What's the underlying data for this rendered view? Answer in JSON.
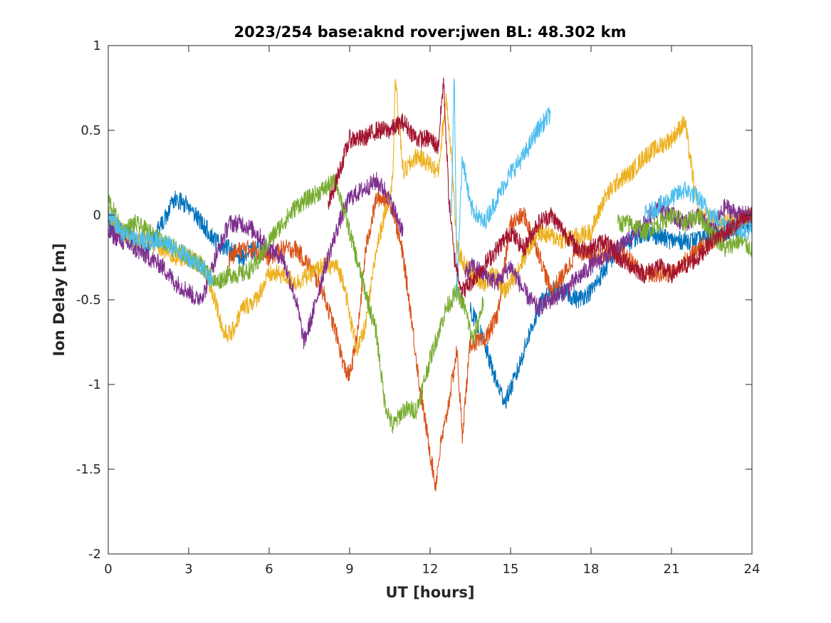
{
  "chart_data": {
    "type": "line",
    "title": "2023/254 base:aknd rover:jwen BL: 48.302 km",
    "xlabel": "UT [hours]",
    "ylabel": "Ion Delay [m]",
    "xlim": [
      0,
      24
    ],
    "ylim": [
      -2,
      1
    ],
    "xticks": [
      0,
      3,
      6,
      9,
      12,
      15,
      18,
      21,
      24
    ],
    "yticks": [
      -2,
      -1.5,
      -1,
      -0.5,
      0,
      0.5,
      1
    ],
    "xtick_labels": [
      "0",
      "3",
      "6",
      "9",
      "12",
      "15",
      "18",
      "21",
      "24"
    ],
    "ytick_labels": [
      "-2",
      "-1.5",
      "-1",
      "-0.5",
      "0",
      "0.5",
      "1"
    ],
    "grid": false,
    "legend": "none",
    "series": [
      {
        "color": "#0072BD",
        "x": [
          0,
          0.5,
          1.0,
          1.5,
          2.0,
          2.5,
          3.0,
          3.5,
          4.0,
          4.5,
          5.0,
          5.5,
          6.0,
          13.5,
          14.0,
          14.5,
          14.8,
          15.2,
          15.7,
          16.2,
          16.6,
          17.0,
          17.5,
          18.0,
          19.0,
          20.0,
          21.0,
          22.0,
          23.0,
          24.0
        ],
        "y": [
          -0.05,
          -0.1,
          -0.15,
          -0.2,
          -0.05,
          0.1,
          0.05,
          -0.05,
          -0.15,
          -0.2,
          -0.25,
          -0.2,
          -0.2,
          -0.55,
          -0.75,
          -1.0,
          -1.1,
          -0.95,
          -0.7,
          -0.5,
          -0.45,
          -0.45,
          -0.5,
          -0.45,
          -0.2,
          -0.1,
          -0.15,
          -0.15,
          -0.1,
          -0.05
        ]
      },
      {
        "color": "#D95319",
        "x": [
          4.5,
          5.0,
          5.5,
          6.0,
          6.5,
          7.0,
          7.5,
          8.0,
          8.5,
          8.8,
          9.0,
          9.3,
          9.6,
          10.0,
          10.3,
          10.6,
          11.0,
          11.3,
          11.6,
          12.0,
          12.2,
          12.4,
          12.6,
          12.8,
          13.0,
          13.2,
          13.5,
          14.0,
          14.5,
          15.0,
          15.5,
          16.0,
          16.5,
          17.0,
          17.5,
          18.0,
          19.0,
          20.0,
          21.0,
          22.0,
          23.0,
          24.0
        ],
        "y": [
          -0.25,
          -0.2,
          -0.2,
          -0.25,
          -0.2,
          -0.2,
          -0.3,
          -0.45,
          -0.7,
          -0.9,
          -0.95,
          -0.7,
          -0.2,
          0.1,
          0.1,
          0.05,
          -0.25,
          -0.6,
          -1.0,
          -1.4,
          -1.6,
          -1.35,
          -1.2,
          -1.0,
          -0.8,
          -1.3,
          -0.75,
          -0.75,
          -0.6,
          -0.05,
          0.0,
          -0.2,
          -0.45,
          -0.35,
          -0.2,
          -0.25,
          -0.2,
          -0.35,
          -0.35,
          -0.2,
          -0.1,
          0.0
        ]
      },
      {
        "color": "#EDB120",
        "x": [
          0,
          0.5,
          1.0,
          1.5,
          2.0,
          2.5,
          3.0,
          3.5,
          4.0,
          4.3,
          4.6,
          5.0,
          5.5,
          6.0,
          6.5,
          7.0,
          7.5,
          8.0,
          8.5,
          8.8,
          9.0,
          9.3,
          9.6,
          10.0,
          10.3,
          10.6,
          10.7,
          11.0,
          11.5,
          12.0,
          12.3,
          12.6,
          12.8,
          13.0,
          13.3,
          13.6,
          14.0,
          14.4,
          14.8,
          15.0,
          15.5,
          16.0,
          17.0,
          18.0,
          18.5,
          19.0,
          19.5,
          20.0,
          20.5,
          21.0,
          21.5,
          22.0,
          23.0,
          24.0
        ],
        "y": [
          0.0,
          -0.1,
          -0.15,
          -0.15,
          -0.2,
          -0.25,
          -0.25,
          -0.3,
          -0.5,
          -0.7,
          -0.7,
          -0.55,
          -0.5,
          -0.35,
          -0.35,
          -0.4,
          -0.35,
          -0.3,
          -0.3,
          -0.4,
          -0.6,
          -0.8,
          -0.65,
          -0.2,
          0.0,
          0.2,
          0.8,
          0.25,
          0.35,
          0.3,
          0.25,
          0.7,
          0.35,
          -0.2,
          -0.3,
          -0.35,
          -0.4,
          -0.35,
          -0.45,
          -0.4,
          -0.25,
          -0.1,
          -0.15,
          -0.1,
          0.1,
          0.2,
          0.25,
          0.35,
          0.4,
          0.45,
          0.55,
          0.0,
          -0.05,
          0.0
        ]
      },
      {
        "color": "#7E2F8E",
        "x": [
          0,
          0.5,
          1.0,
          1.5,
          2.0,
          2.5,
          3.0,
          3.3,
          3.6,
          4.0,
          4.5,
          5.0,
          5.5,
          6.0,
          6.5,
          7.0,
          7.3,
          7.6,
          8.0,
          8.3,
          8.6,
          9.0,
          9.5,
          10.0,
          10.3,
          10.6,
          11.0,
          13.3,
          13.6,
          14.0,
          14.5,
          15.0,
          15.5,
          16.0,
          16.5,
          17.0,
          18.0,
          19.0,
          20.0,
          20.5,
          21.0,
          21.5,
          22.0,
          22.5,
          23.0,
          23.5,
          24.0
        ],
        "y": [
          -0.1,
          -0.15,
          -0.2,
          -0.25,
          -0.3,
          -0.4,
          -0.45,
          -0.5,
          -0.45,
          -0.25,
          -0.05,
          -0.05,
          -0.1,
          -0.2,
          -0.25,
          -0.5,
          -0.75,
          -0.6,
          -0.35,
          -0.2,
          -0.05,
          0.1,
          0.15,
          0.2,
          0.15,
          0.05,
          -0.1,
          -0.35,
          -0.3,
          -0.35,
          -0.4,
          -0.3,
          -0.45,
          -0.55,
          -0.5,
          -0.45,
          -0.3,
          -0.2,
          -0.05,
          0.05,
          0.0,
          -0.05,
          0.0,
          -0.1,
          0.05,
          0.0,
          0.0
        ]
      },
      {
        "color": "#77AC30",
        "x": [
          0,
          0.5,
          1.0,
          1.5,
          2.0,
          2.5,
          3.0,
          3.5,
          4.0,
          4.5,
          5.0,
          5.5,
          6.0,
          6.5,
          7.0,
          7.5,
          8.0,
          8.5,
          9.0,
          9.5,
          10.0,
          10.3,
          10.6,
          11.0,
          11.5,
          12.0,
          12.3,
          12.6,
          13.0,
          13.3,
          13.6,
          14.0,
          19.0,
          19.5,
          20.0,
          20.5,
          21.0,
          21.5,
          22.0,
          22.5,
          23.0,
          23.5,
          24.0
        ],
        "y": [
          0.1,
          -0.1,
          -0.05,
          -0.1,
          -0.15,
          -0.2,
          -0.25,
          -0.3,
          -0.4,
          -0.35,
          -0.35,
          -0.3,
          -0.15,
          -0.05,
          0.05,
          0.1,
          0.15,
          0.2,
          -0.1,
          -0.4,
          -0.7,
          -1.1,
          -1.25,
          -1.15,
          -1.15,
          -0.85,
          -0.7,
          -0.55,
          -0.45,
          -0.55,
          -0.75,
          -0.5,
          -0.05,
          -0.05,
          -0.1,
          -0.05,
          0.0,
          -0.05,
          0.0,
          -0.1,
          -0.2,
          -0.15,
          -0.2
        ]
      },
      {
        "color": "#4DBEEE",
        "x": [
          0,
          0.5,
          1.0,
          1.5,
          2.0,
          2.5,
          3.0,
          3.5,
          3.9,
          12.8,
          12.9,
          13.0,
          13.2,
          13.5,
          14.0,
          14.5,
          15.0,
          15.5,
          16.0,
          16.5,
          20.0,
          21.0,
          21.5,
          22.0,
          22.5,
          23.0,
          24.0
        ],
        "y": [
          0.0,
          -0.1,
          -0.15,
          -0.15,
          -0.15,
          -0.2,
          -0.25,
          -0.3,
          -0.4,
          0.05,
          0.85,
          -0.45,
          0.35,
          0.05,
          -0.05,
          0.1,
          0.25,
          0.35,
          0.5,
          0.6,
          0.0,
          0.1,
          0.15,
          0.1,
          0.0,
          -0.05,
          -0.1
        ]
      },
      {
        "color": "#A2142F",
        "x": [
          8.2,
          8.5,
          8.8,
          9.0,
          9.5,
          10.0,
          10.5,
          11.0,
          11.5,
          12.0,
          12.3,
          12.5,
          12.7,
          12.9,
          13.2,
          13.5,
          14.0,
          14.5,
          15.0,
          15.5,
          16.0,
          16.5,
          17.0,
          17.5,
          18.0,
          18.5,
          19.0,
          19.5,
          20.0,
          20.5,
          21.0,
          21.5,
          22.0,
          22.5,
          23.0,
          23.5,
          24.0
        ],
        "y": [
          0.05,
          0.2,
          0.35,
          0.45,
          0.45,
          0.5,
          0.5,
          0.55,
          0.45,
          0.45,
          0.4,
          0.8,
          0.1,
          -0.25,
          -0.45,
          -0.4,
          -0.3,
          -0.2,
          -0.1,
          -0.2,
          -0.05,
          0.0,
          -0.1,
          -0.2,
          -0.2,
          -0.15,
          -0.25,
          -0.3,
          -0.35,
          -0.3,
          -0.35,
          -0.3,
          -0.25,
          -0.15,
          -0.1,
          -0.05,
          0.0
        ]
      }
    ]
  }
}
